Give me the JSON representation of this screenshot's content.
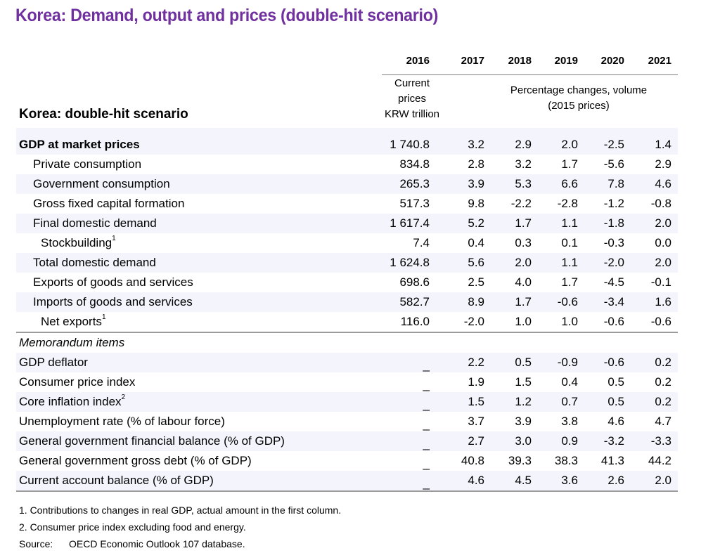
{
  "title": "Korea: Demand, output and prices (double-hit scenario)",
  "table": {
    "scenario_label": "Korea: double-hit scenario",
    "years": [
      "2016",
      "2017",
      "2018",
      "2019",
      "2020",
      "2021"
    ],
    "unit_first_col": [
      "Current",
      "prices",
      "KRW trillion"
    ],
    "unit_other_cols": [
      "Percentage changes, volume",
      "(2015 prices)"
    ],
    "main_rows": [
      {
        "label": "GDP at market prices",
        "values": [
          "1 740.8",
          "3.2",
          "2.9",
          "2.0",
          "-2.5",
          "1.4"
        ]
      },
      {
        "label": "Private consumption",
        "values": [
          "834.8",
          "2.8",
          "3.2",
          "1.7",
          "-5.6",
          "2.9"
        ]
      },
      {
        "label": "Government consumption",
        "values": [
          "265.3",
          "3.9",
          "5.3",
          "6.6",
          "7.8",
          "4.6"
        ]
      },
      {
        "label": "Gross fixed capital formation",
        "values": [
          "517.3",
          "9.8",
          "-2.2",
          "-2.8",
          "-1.2",
          "-0.8"
        ]
      },
      {
        "label": "Final domestic demand",
        "values": [
          "1 617.4",
          "5.2",
          "1.7",
          "1.1",
          "-1.8",
          "2.0"
        ]
      },
      {
        "label": "Stockbuilding",
        "footnote": "1",
        "values": [
          "7.4",
          "0.4",
          "0.3",
          "0.1",
          "-0.3",
          "0.0"
        ]
      },
      {
        "label": "Total domestic demand",
        "values": [
          "1 624.8",
          "5.6",
          "2.0",
          "1.1",
          "-2.0",
          "2.0"
        ]
      },
      {
        "label": "Exports of goods and services",
        "values": [
          "698.6",
          "2.5",
          "4.0",
          "1.7",
          "-4.5",
          "-0.1"
        ]
      },
      {
        "label": "Imports of goods and services",
        "values": [
          "582.7",
          "8.9",
          "1.7",
          "-0.6",
          "-3.4",
          "1.6"
        ]
      },
      {
        "label": "Net exports",
        "footnote": "1",
        "values": [
          "116.0",
          "-2.0",
          "1.0",
          "1.0",
          "-0.6",
          "-0.6"
        ]
      }
    ],
    "memo_header": "Memorandum items",
    "memo_rows": [
      {
        "label": "GDP deflator",
        "values": [
          "_",
          "2.2",
          "0.5",
          "-0.9",
          "-0.6",
          "0.2"
        ]
      },
      {
        "label": "Consumer price index",
        "values": [
          "_",
          "1.9",
          "1.5",
          "0.4",
          "0.5",
          "0.2"
        ]
      },
      {
        "label": "Core inflation index",
        "footnote": "2",
        "values": [
          "_",
          "1.5",
          "1.2",
          "0.7",
          "0.5",
          "0.2"
        ]
      },
      {
        "label": "Unemployment rate (% of labour force)",
        "values": [
          "_",
          "3.7",
          "3.9",
          "3.8",
          "4.6",
          "4.7"
        ]
      },
      {
        "label": "General government financial balance (% of GDP)",
        "values": [
          "_",
          "2.7",
          "3.0",
          "0.9",
          "-3.2",
          "-3.3"
        ]
      },
      {
        "label": "General government gross debt (% of GDP)",
        "values": [
          "_",
          "40.8",
          "39.3",
          "38.3",
          "41.3",
          "44.2"
        ]
      },
      {
        "label": "Current account balance (% of GDP)",
        "values": [
          "_",
          "4.6",
          "4.5",
          "3.6",
          "2.6",
          "2.0"
        ]
      }
    ]
  },
  "notes": {
    "note1": "1.  Contributions to changes in real GDP, actual amount in the first column.",
    "note2": "2.  Consumer price index excluding food and energy.",
    "source_label": "Source:",
    "source_text": "OECD Economic Outlook 107 database."
  },
  "colors": {
    "title": "#7030a0",
    "row_shade": "#f3f4fc",
    "rule": "#9b9b9b"
  }
}
